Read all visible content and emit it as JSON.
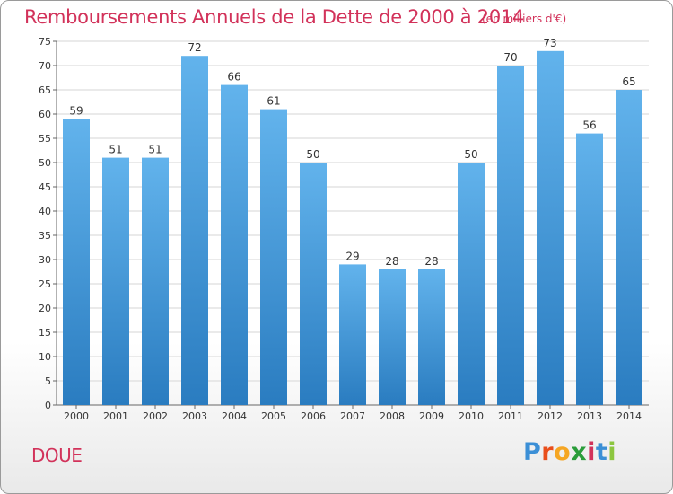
{
  "header": {
    "title": "Remboursements Annuels de la Dette de 2000 à 2014",
    "subtitle": "(en milliers d'€)"
  },
  "footer": {
    "commune": "DOUE",
    "logo_letters": [
      "P",
      "r",
      "o",
      "x",
      "i",
      "t",
      "i"
    ],
    "logo_colors": [
      "#3b8fd6",
      "#e94e1b",
      "#f5a623",
      "#2a9d3a",
      "#d2325a",
      "#3b8fd6",
      "#8cc63f"
    ]
  },
  "chart_data": {
    "type": "bar",
    "categories": [
      "2000",
      "2001",
      "2002",
      "2003",
      "2004",
      "2005",
      "2006",
      "2007",
      "2008",
      "2009",
      "2010",
      "2011",
      "2012",
      "2013",
      "2014"
    ],
    "values": [
      59,
      51,
      51,
      72,
      66,
      61,
      50,
      29,
      28,
      28,
      50,
      70,
      73,
      56,
      65
    ],
    "ylim": [
      0,
      75
    ],
    "yticks": [
      0,
      5,
      10,
      15,
      20,
      25,
      30,
      35,
      40,
      45,
      50,
      55,
      60,
      65,
      70,
      75
    ],
    "grid": true,
    "bar_color_top": "#62b3ec",
    "bar_color_bottom": "#2a7cc0",
    "title": "Remboursements Annuels de la Dette de 2000 à 2014",
    "xlabel": "",
    "ylabel": ""
  }
}
